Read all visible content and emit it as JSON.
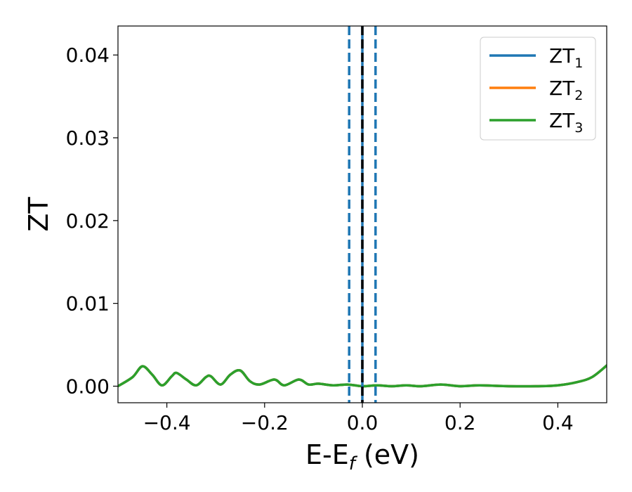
{
  "chart_data": {
    "type": "line",
    "title": "",
    "xlabel": {
      "main": "E-E",
      "sub": "f",
      "unit": " (eV)"
    },
    "ylabel": "ZT",
    "xlim": [
      -0.5,
      0.5
    ],
    "ylim": [
      -0.002,
      0.0435
    ],
    "x_ticks": [
      -0.4,
      -0.2,
      0.0,
      0.2,
      0.4
    ],
    "x_tick_labels": [
      "−0.4",
      "−0.2",
      "0.0",
      "0.2",
      "0.4"
    ],
    "y_ticks": [
      0.0,
      0.01,
      0.02,
      0.03,
      0.04
    ],
    "y_tick_labels": [
      "0.00",
      "0.01",
      "0.02",
      "0.03",
      "0.04"
    ],
    "grid": false,
    "legend_position": "top-right",
    "series": [
      {
        "name": "ZT",
        "sub": "1",
        "color": "#1f77b4",
        "x": [
          -0.5,
          -0.47,
          -0.45,
          -0.43,
          -0.41,
          -0.39,
          -0.38,
          -0.36,
          -0.34,
          -0.32,
          -0.31,
          -0.29,
          -0.27,
          -0.25,
          -0.23,
          -0.21,
          -0.18,
          -0.16,
          -0.13,
          -0.11,
          -0.09,
          -0.06,
          -0.03,
          0.0,
          0.03,
          0.06,
          0.09,
          0.12,
          0.16,
          0.2,
          0.24,
          0.3,
          0.36,
          0.4,
          0.44,
          0.47,
          0.5
        ],
        "y": [
          0.0,
          0.0011,
          0.0024,
          0.0014,
          0.0001,
          0.0012,
          0.0016,
          0.0008,
          0.0001,
          0.0011,
          0.0012,
          0.0002,
          0.0014,
          0.0019,
          0.0006,
          0.0002,
          0.0008,
          0.0001,
          0.0008,
          0.0002,
          0.0003,
          0.0001,
          0.0002,
          0.0,
          0.0001,
          0.0,
          0.0001,
          0.0,
          0.0002,
          0.0,
          0.0001,
          0.0,
          0.0,
          0.0001,
          0.0005,
          0.0011,
          0.0025
        ]
      },
      {
        "name": "ZT",
        "sub": "2",
        "color": "#ff7f0e",
        "x": [
          -0.5,
          -0.47,
          -0.45,
          -0.43,
          -0.41,
          -0.39,
          -0.38,
          -0.36,
          -0.34,
          -0.32,
          -0.31,
          -0.29,
          -0.27,
          -0.25,
          -0.23,
          -0.21,
          -0.18,
          -0.16,
          -0.13,
          -0.11,
          -0.09,
          -0.06,
          -0.03,
          0.0,
          0.03,
          0.06,
          0.09,
          0.12,
          0.16,
          0.2,
          0.24,
          0.3,
          0.36,
          0.4,
          0.44,
          0.47,
          0.5
        ],
        "y": [
          0.0,
          0.0011,
          0.0024,
          0.0014,
          0.0001,
          0.0012,
          0.0016,
          0.0008,
          0.0001,
          0.0011,
          0.0012,
          0.0002,
          0.0014,
          0.0019,
          0.0006,
          0.0002,
          0.0008,
          0.0001,
          0.0008,
          0.0002,
          0.0003,
          0.0001,
          0.0002,
          0.0,
          0.0001,
          0.0,
          0.0001,
          0.0,
          0.0002,
          0.0,
          0.0001,
          0.0,
          0.0,
          0.0001,
          0.0005,
          0.0011,
          0.0025
        ]
      },
      {
        "name": "ZT",
        "sub": "3",
        "color": "#2ca02c",
        "x": [
          -0.5,
          -0.47,
          -0.45,
          -0.43,
          -0.41,
          -0.39,
          -0.38,
          -0.36,
          -0.34,
          -0.32,
          -0.31,
          -0.29,
          -0.27,
          -0.25,
          -0.23,
          -0.21,
          -0.18,
          -0.16,
          -0.13,
          -0.11,
          -0.09,
          -0.06,
          -0.03,
          0.0,
          0.03,
          0.06,
          0.09,
          0.12,
          0.16,
          0.2,
          0.24,
          0.3,
          0.36,
          0.4,
          0.44,
          0.47,
          0.5
        ],
        "y": [
          0.0,
          0.0011,
          0.0024,
          0.0014,
          0.0001,
          0.0012,
          0.0016,
          0.0008,
          0.0001,
          0.0011,
          0.0012,
          0.0002,
          0.0014,
          0.0019,
          0.0006,
          0.0002,
          0.0008,
          0.0001,
          0.0008,
          0.0002,
          0.0003,
          0.0001,
          0.0002,
          0.0,
          0.0001,
          0.0,
          0.0001,
          0.0,
          0.0002,
          0.0,
          0.0001,
          0.0,
          0.0,
          0.0001,
          0.0005,
          0.0011,
          0.0025
        ]
      }
    ],
    "vertical_lines": [
      {
        "x": -0.027,
        "style": "dashed",
        "color": "#1f77b4"
      },
      {
        "x": 0.027,
        "style": "dashed",
        "color": "#1f77b4"
      },
      {
        "x": 0.0,
        "style": "solid",
        "color": "#1f77b4"
      },
      {
        "x": 0.0,
        "style": "dashed",
        "color": "#000000"
      }
    ]
  }
}
